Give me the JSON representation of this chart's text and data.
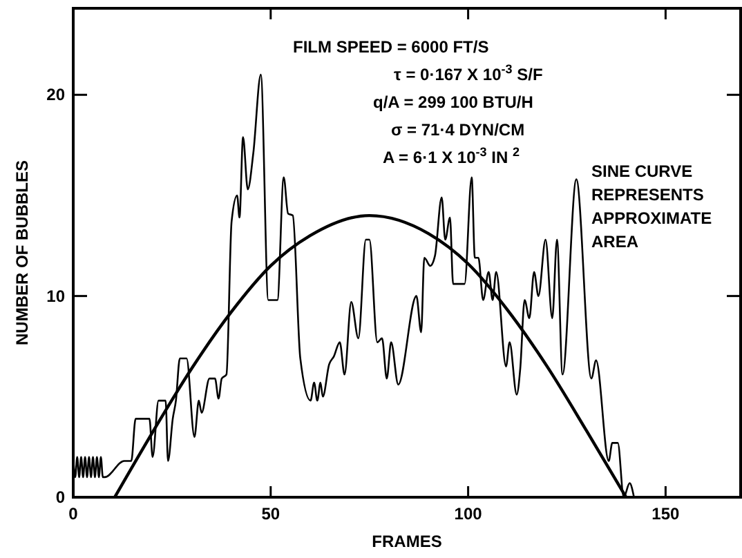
{
  "chart_data": {
    "type": "line",
    "xlabel": "FRAMES",
    "ylabel": "NUMBER OF BUBBLES",
    "xlim": [
      0,
      169
    ],
    "ylim": [
      0,
      24.3
    ],
    "xticks": [
      0,
      50,
      100,
      150
    ],
    "yticks": [
      0,
      10,
      20
    ],
    "grid": false,
    "marker": "none",
    "annotations": [
      "FILM SPEED = 6000 FT/S",
      "τ = 0·167 X 10$^{-3}$ S/F",
      "q/A = 299 100  BTU/H",
      "σ  = 71·4 DYN/CM",
      "A = 6·1 X 10$^{-3}$ IN $^{2}$",
      "SINE CURVE REPRESENTS APPROXIMATE AREA"
    ],
    "series": [
      {
        "color": "#000000",
        "line_style": "solid",
        "x": [
          0,
          0.5,
          1,
          1.5,
          2,
          2.5,
          3,
          3.5,
          4,
          4.5,
          5,
          5.5,
          6,
          6.5,
          7,
          7.5,
          8,
          12.9,
          14.7,
          15.8,
          19.3,
          20.1,
          21.6,
          23.4,
          24,
          25.2,
          26,
          27,
          28.7,
          30.7,
          31.8,
          32.5,
          34.5,
          35.9,
          36.8,
          37.6,
          38.8,
          40.1,
          41.5,
          42.1,
          43,
          44.2,
          45.6,
          47.5,
          49.4,
          51.7,
          53.3,
          54.4,
          55.6,
          57.5,
          60.1,
          61,
          61.8,
          62.6,
          63.2,
          64.8,
          66,
          67.5,
          68.7,
          70.4,
          72.2,
          74.1,
          75,
          77,
          78.2,
          79.4,
          80.5,
          82.3,
          86.9,
          88.1,
          88.9,
          90.4,
          91.6,
          93.3,
          94.2,
          95.4,
          96.2,
          99.1,
          100.9,
          101.7,
          102.6,
          103.8,
          105.2,
          106.2,
          107.1,
          109.6,
          110.5,
          112.3,
          113.2,
          114.3,
          115.5,
          116.7,
          117.8,
          119.6,
          121.3,
          122.5,
          123.9,
          127.4,
          131.2,
          132.4,
          135.6,
          136.5,
          137.9,
          139.4,
          140.9,
          142
        ],
        "values": [
          2,
          1,
          2,
          1,
          2,
          1,
          2,
          1,
          2,
          1,
          2,
          1,
          2,
          1,
          2,
          1,
          1,
          1.8,
          1.8,
          3.9,
          3.9,
          2,
          4.8,
          4.8,
          1.8,
          3.9,
          4.8,
          6.9,
          6.9,
          3,
          4.8,
          4.2,
          5.9,
          5.9,
          4.9,
          5.9,
          6.1,
          13.7,
          15,
          13.9,
          17.9,
          15.3,
          17.1,
          21,
          9.8,
          9.8,
          15.9,
          14.1,
          14,
          6.9,
          4.8,
          5.7,
          4.8,
          5.7,
          5,
          6.6,
          7,
          7.7,
          6.1,
          9.7,
          7.9,
          12.8,
          12.8,
          7.7,
          7.9,
          5.9,
          7.7,
          5.6,
          10,
          8.2,
          11.9,
          11.5,
          12,
          14.9,
          12.8,
          13.9,
          10.6,
          10.6,
          15.9,
          11.9,
          11.9,
          9.8,
          11.2,
          9.8,
          11.2,
          6.5,
          7.7,
          5.1,
          6.4,
          9.8,
          8.9,
          11.2,
          10,
          12.8,
          8.9,
          12.8,
          6.1,
          15.8,
          5.9,
          6.8,
          1.8,
          2.7,
          2.7,
          0,
          0.7,
          0
        ]
      },
      {
        "color": "#000000",
        "line_style": "solid",
        "x": [
          10.5,
          20,
          30,
          40,
          50,
          60,
          75,
          90,
          100,
          110,
          120,
          130,
          140
        ],
        "values": [
          0,
          3.2,
          6.4,
          9.2,
          11.5,
          13,
          14,
          13.1,
          11.6,
          9.3,
          6.5,
          3.3,
          0
        ]
      }
    ]
  }
}
